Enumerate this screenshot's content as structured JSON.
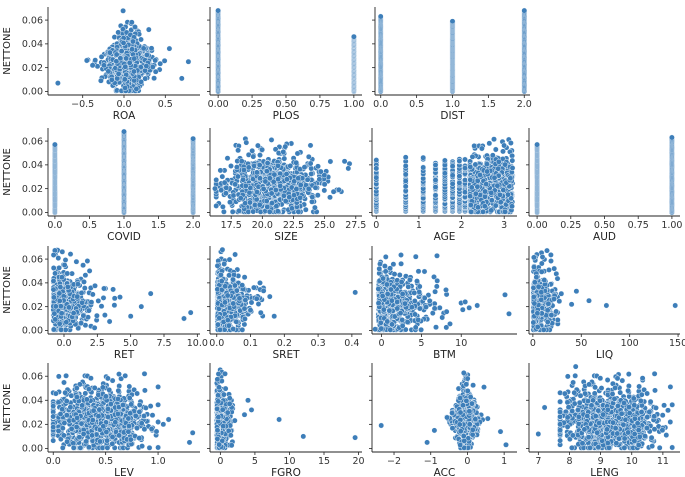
{
  "figure": {
    "ylabel": "NETTONE",
    "yticks": [
      "0.00",
      "0.02",
      "0.04",
      "0.06"
    ],
    "colors": {
      "point": "#3d7eb9",
      "axis": "#222222"
    }
  },
  "chart_data": [
    {
      "type": "scatter",
      "name": "ROA",
      "xlabel": "ROA",
      "ylabel": "NETTONE",
      "xlim": [
        -0.92,
        0.92
      ],
      "ylim": [
        -0.003,
        0.071
      ],
      "xticks": [
        -0.5,
        0.0,
        0.5
      ],
      "xtick_labels": [
        "−0.5",
        "0.0",
        "0.5"
      ],
      "yticks": [
        0,
        0.02,
        0.04,
        0.06
      ],
      "ytick_labels": [
        "0.00",
        "0.02",
        "0.04",
        "0.06"
      ],
      "distribution": {
        "kind": "normal",
        "center": 0.05,
        "spread": 0.14
      },
      "outliers": [
        [
          -0.8,
          0.007
        ],
        [
          -0.45,
          0.026
        ],
        [
          -0.38,
          0.022
        ],
        [
          0.7,
          0.011
        ],
        [
          0.78,
          0.025
        ],
        [
          -0.28,
          0.009
        ],
        [
          0.55,
          0.036
        ],
        [
          0.3,
          0.052
        ]
      ]
    },
    {
      "type": "scatter",
      "name": "PLOS",
      "xlabel": "PLOS",
      "ylabel": "NETTONE",
      "xlim": [
        -0.06,
        1.06
      ],
      "ylim": [
        -0.003,
        0.071
      ],
      "xticks": [
        0,
        0.25,
        0.5,
        0.75,
        1.0
      ],
      "xtick_labels": [
        "0.00",
        "0.25",
        "0.50",
        "0.75",
        "1.00"
      ],
      "distribution": {
        "kind": "discrete",
        "levels": [
          0,
          1
        ],
        "ymax": [
          0.068,
          0.046
        ]
      },
      "outliers": []
    },
    {
      "type": "scatter",
      "name": "DIST",
      "xlabel": "DIST",
      "ylabel": "NETTONE",
      "xlim": [
        -0.08,
        2.08
      ],
      "ylim": [
        -0.003,
        0.071
      ],
      "xticks": [
        0,
        0.5,
        1.0,
        1.5,
        2.0
      ],
      "xtick_labels": [
        "0.0",
        "0.5",
        "1.0",
        "1.5",
        "2.0"
      ],
      "distribution": {
        "kind": "discrete",
        "levels": [
          0,
          1,
          2
        ],
        "ymax": [
          0.063,
          0.059,
          0.068
        ]
      },
      "outliers": []
    },
    {
      "type": "scatter",
      "name": "COVID",
      "xlabel": "COVID",
      "ylabel": "NETTONE",
      "xlim": [
        -0.1,
        2.1
      ],
      "ylim": [
        -0.003,
        0.071
      ],
      "xticks": [
        0,
        0.5,
        1.0,
        1.5,
        2.0
      ],
      "xtick_labels": [
        "0.0",
        "0.5",
        "1.0",
        "1.5",
        "2.0"
      ],
      "yticks": [
        0,
        0.02,
        0.04,
        0.06
      ],
      "ytick_labels": [
        "0.00",
        "0.02",
        "0.04",
        "0.06"
      ],
      "distribution": {
        "kind": "discrete",
        "levels": [
          0,
          1,
          2
        ],
        "ymax": [
          0.057,
          0.068,
          0.062
        ]
      },
      "outliers": []
    },
    {
      "type": "scatter",
      "name": "SIZE",
      "xlabel": "SIZE",
      "ylabel": "NETTONE",
      "xlim": [
        15.8,
        28.0
      ],
      "ylim": [
        -0.003,
        0.071
      ],
      "xticks": [
        17.5,
        20.0,
        22.5,
        25.0,
        27.5
      ],
      "xtick_labels": [
        "17.5",
        "20.0",
        "22.5",
        "25.0",
        "27.5"
      ],
      "distribution": {
        "kind": "cloud",
        "xmin": 16.3,
        "xmax": 26.7,
        "center": 21.0,
        "spread": 1.8
      },
      "outliers": [
        [
          27.0,
          0.041
        ],
        [
          26.9,
          0.037
        ],
        [
          26.6,
          0.043
        ],
        [
          16.2,
          0.02
        ]
      ]
    },
    {
      "type": "scatter",
      "name": "AGE",
      "xlabel": "AGE",
      "ylabel": "NETTONE",
      "xlim": [
        -0.1,
        3.3
      ],
      "ylim": [
        -0.003,
        0.071
      ],
      "xticks": [
        0,
        1,
        2,
        3
      ],
      "xtick_labels": [
        "0",
        "1",
        "2",
        "3"
      ],
      "distribution": {
        "kind": "age",
        "levels": [
          0,
          0.69,
          1.1,
          1.39,
          1.61,
          1.79,
          1.95,
          2.08,
          2.2
        ],
        "cloud": [
          2.2,
          3.2
        ]
      },
      "outliers": []
    },
    {
      "type": "scatter",
      "name": "AUD",
      "xlabel": "AUD",
      "ylabel": "NETTONE",
      "xlim": [
        -0.06,
        1.06
      ],
      "ylim": [
        -0.003,
        0.071
      ],
      "xticks": [
        0,
        0.25,
        0.5,
        0.75,
        1.0
      ],
      "xtick_labels": [
        "0.00",
        "0.25",
        "0.50",
        "0.75",
        "1.00"
      ],
      "distribution": {
        "kind": "discrete",
        "levels": [
          0,
          1
        ],
        "ymax": [
          0.057,
          0.063
        ]
      },
      "outliers": []
    },
    {
      "type": "scatter",
      "name": "RET",
      "xlabel": "RET",
      "ylabel": "NETTONE",
      "xlim": [
        -1.2,
        10.2
      ],
      "ylim": [
        -0.003,
        0.071
      ],
      "xticks": [
        0,
        2.5,
        5,
        7.5,
        10
      ],
      "xtick_labels": [
        "0.0",
        "2.5",
        "5.0",
        "7.5",
        "10.0"
      ],
      "yticks": [
        0,
        0.02,
        0.04,
        0.06
      ],
      "ytick_labels": [
        "0.00",
        "0.02",
        "0.04",
        "0.06"
      ],
      "distribution": {
        "kind": "skew",
        "xmin": -0.8,
        "scale": 0.9
      },
      "outliers": [
        [
          9.5,
          0.015
        ],
        [
          9.0,
          0.01
        ],
        [
          6.5,
          0.031
        ],
        [
          5.0,
          0.012
        ],
        [
          4.2,
          0.028
        ],
        [
          3.8,
          0.027
        ],
        [
          5.8,
          0.02
        ]
      ]
    },
    {
      "type": "scatter",
      "name": "SRET",
      "xlabel": "SRET",
      "ylabel": "NETTONE",
      "xlim": [
        -0.02,
        0.43
      ],
      "ylim": [
        -0.003,
        0.071
      ],
      "xticks": [
        0.0,
        0.1,
        0.2,
        0.3,
        0.4
      ],
      "xtick_labels": [
        "0.0",
        "0.1",
        "0.2",
        "0.3",
        "0.4"
      ],
      "distribution": {
        "kind": "skew",
        "xmin": 0.002,
        "scale": 0.03
      },
      "outliers": [
        [
          0.41,
          0.032
        ],
        [
          0.17,
          0.012
        ],
        [
          0.11,
          0.036
        ],
        [
          0.1,
          0.017
        ]
      ]
    },
    {
      "type": "scatter",
      "name": "BTM",
      "xlabel": "BTM",
      "ylabel": "NETTONE",
      "xlim": [
        -1.2,
        17.0
      ],
      "ylim": [
        -0.003,
        0.071
      ],
      "xticks": [
        0,
        5,
        10
      ],
      "xtick_labels": [
        "0",
        "5",
        "10"
      ],
      "distribution": {
        "kind": "skew",
        "xmin": -0.4,
        "scale": 2.0
      },
      "outliers": [
        [
          16.0,
          0.014
        ],
        [
          15.5,
          0.03
        ],
        [
          12.0,
          0.021
        ],
        [
          11.0,
          0.019
        ],
        [
          10.5,
          0.024
        ],
        [
          -0.8,
          0.001
        ]
      ]
    },
    {
      "type": "scatter",
      "name": "LIQ",
      "xlabel": "LIQ",
      "ylabel": "NETTONE",
      "xlim": [
        -4,
        152
      ],
      "ylim": [
        -0.003,
        0.071
      ],
      "xticks": [
        0,
        50,
        100,
        150
      ],
      "xtick_labels": [
        "0",
        "50",
        "100",
        "150"
      ],
      "distribution": {
        "kind": "skew",
        "xmin": 0.5,
        "scale": 6.0
      },
      "outliers": [
        [
          147,
          0.021
        ],
        [
          76,
          0.021
        ],
        [
          58,
          0.025
        ],
        [
          45,
          0.033
        ],
        [
          40,
          0.022
        ]
      ]
    },
    {
      "type": "scatter",
      "name": "LEV",
      "xlabel": "LEV",
      "ylabel": "NETTONE",
      "xlim": [
        -0.05,
        1.4
      ],
      "ylim": [
        -0.003,
        0.071
      ],
      "xticks": [
        0.0,
        0.5,
        1.0
      ],
      "xtick_labels": [
        "0.0",
        "0.5",
        "1.0"
      ],
      "yticks": [
        0,
        0.02,
        0.04,
        0.06
      ],
      "ytick_labels": [
        "0.00",
        "0.02",
        "0.04",
        "0.06"
      ],
      "distribution": {
        "kind": "cloud",
        "xmin": 0.0,
        "xmax": 1.0,
        "center": 0.45,
        "spread": 0.22
      },
      "outliers": [
        [
          1.33,
          0.013
        ],
        [
          1.3,
          0.005
        ],
        [
          1.1,
          0.024
        ],
        [
          1.05,
          0.02
        ]
      ]
    },
    {
      "type": "scatter",
      "name": "FGRO",
      "xlabel": "FGRO",
      "ylabel": "NETTONE",
      "xlim": [
        -1.5,
        20.5
      ],
      "ylim": [
        -0.003,
        0.071
      ],
      "xticks": [
        0,
        5,
        10,
        15,
        20
      ],
      "xtick_labels": [
        "0",
        "5",
        "10",
        "15",
        "20"
      ],
      "distribution": {
        "kind": "skew",
        "xmin": -0.5,
        "scale": 0.5
      },
      "outliers": [
        [
          19.5,
          0.009
        ],
        [
          12.0,
          0.01
        ],
        [
          8.5,
          0.024
        ],
        [
          4.5,
          0.032
        ],
        [
          4.0,
          0.04
        ],
        [
          3.5,
          0.028
        ]
      ]
    },
    {
      "type": "scatter",
      "name": "ACC",
      "xlabel": "ACC",
      "ylabel": "NETTONE",
      "xlim": [
        -2.6,
        1.35
      ],
      "ylim": [
        -0.003,
        0.071
      ],
      "xticks": [
        -2,
        -1,
        0,
        1
      ],
      "xtick_labels": [
        "−2",
        "−1",
        "0",
        "1"
      ],
      "distribution": {
        "kind": "normal",
        "center": -0.05,
        "spread": 0.17
      },
      "outliers": [
        [
          -2.35,
          0.019
        ],
        [
          -1.1,
          0.005
        ],
        [
          -0.9,
          0.015
        ],
        [
          0.9,
          0.014
        ],
        [
          1.05,
          0.003
        ],
        [
          0.45,
          0.051
        ]
      ]
    },
    {
      "type": "scatter",
      "name": "LENG",
      "xlabel": "LENG",
      "ylabel": "NETTONE",
      "xlim": [
        6.7,
        11.55
      ],
      "ylim": [
        -0.003,
        0.071
      ],
      "xticks": [
        7,
        8,
        9,
        10,
        11
      ],
      "xtick_labels": [
        "7",
        "8",
        "9",
        "10",
        "11"
      ],
      "distribution": {
        "kind": "cloud",
        "xmin": 7.7,
        "xmax": 11.3,
        "center": 9.3,
        "spread": 0.75
      },
      "outliers": [
        [
          7.0,
          0.012
        ],
        [
          7.2,
          0.034
        ],
        [
          8.2,
          0.068
        ]
      ]
    }
  ]
}
